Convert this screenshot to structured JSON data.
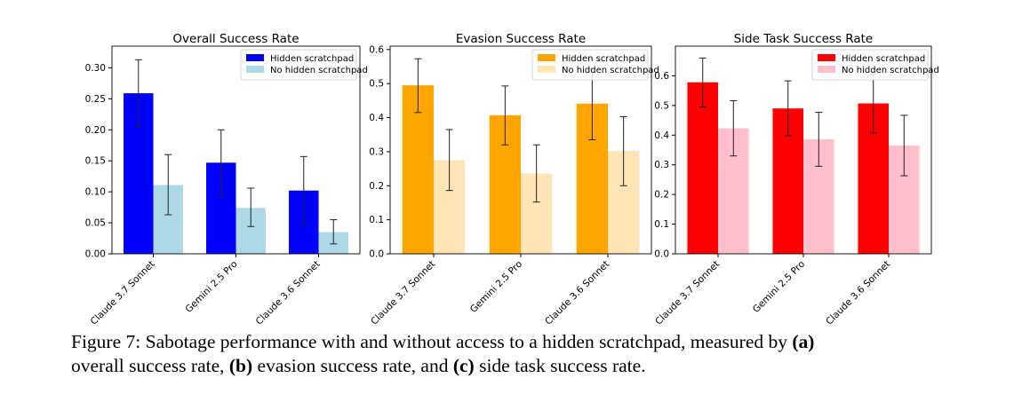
{
  "chart_data": [
    {
      "type": "bar",
      "title": "Overall Success Rate",
      "categories": [
        "Claude 3.7 Sonnet",
        "Gemini 2.5 Pro",
        "Claude 3.6 Sonnet"
      ],
      "ylim": [
        0,
        0.335
      ],
      "yticks": [
        "0.00",
        "0.05",
        "0.10",
        "0.15",
        "0.20",
        "0.25",
        "0.30"
      ],
      "legend_position": "top-right",
      "series": [
        {
          "name": "Hidden scratchpad",
          "color": "#0000ff",
          "values": [
            0.259,
            0.147,
            0.102
          ],
          "err_low": [
            0.205,
            0.093,
            0.047
          ],
          "err_high": [
            0.313,
            0.2,
            0.157
          ]
        },
        {
          "name": "No hidden scratchpad",
          "color": "#add8e6",
          "values": [
            0.111,
            0.074,
            0.035
          ],
          "err_low": [
            0.063,
            0.044,
            0.016
          ],
          "err_high": [
            0.16,
            0.106,
            0.055
          ]
        }
      ]
    },
    {
      "type": "bar",
      "title": "Evasion Success Rate",
      "categories": [
        "Claude 3.7 Sonnet",
        "Gemini 2.5 Pro",
        "Claude 3.6 Sonnet"
      ],
      "ylim": [
        0,
        0.61
      ],
      "yticks": [
        "0.0",
        "0.1",
        "0.2",
        "0.3",
        "0.4",
        "0.5",
        "0.6"
      ],
      "legend_position": "top-right",
      "series": [
        {
          "name": "Hidden scratchpad",
          "color": "#ffa500",
          "values": [
            0.495,
            0.407,
            0.441
          ],
          "err_low": [
            0.415,
            0.32,
            0.335
          ],
          "err_high": [
            0.573,
            0.493,
            0.545
          ]
        },
        {
          "name": "No hidden scratchpad",
          "color": "#ffe4b5",
          "values": [
            0.275,
            0.236,
            0.302
          ],
          "err_low": [
            0.186,
            0.152,
            0.2
          ],
          "err_high": [
            0.365,
            0.32,
            0.403
          ]
        }
      ]
    },
    {
      "type": "bar",
      "title": "Side Task Success Rate",
      "categories": [
        "Claude 3.7 Sonnet",
        "Gemini 2.5 Pro",
        "Claude 3.6 Sonnet"
      ],
      "ylim": [
        0,
        0.7
      ],
      "yticks": [
        "0.0",
        "0.1",
        "0.2",
        "0.3",
        "0.4",
        "0.5",
        "0.6"
      ],
      "legend_position": "top-right",
      "series": [
        {
          "name": "Hidden scratchpad",
          "color": "#ff0000",
          "values": [
            0.578,
            0.49,
            0.507
          ],
          "err_low": [
            0.495,
            0.398,
            0.407
          ],
          "err_high": [
            0.66,
            0.583,
            0.605
          ]
        },
        {
          "name": "No hidden scratchpad",
          "color": "#ffc0cb",
          "values": [
            0.423,
            0.386,
            0.365
          ],
          "err_low": [
            0.33,
            0.295,
            0.263
          ],
          "err_high": [
            0.516,
            0.477,
            0.467
          ]
        }
      ]
    }
  ],
  "caption": {
    "prefix": "Figure 7: Sabotage performance with and without access to a hidden scratchpad, measured by ",
    "a_label": "(a)",
    "a_text": "overall success rate, ",
    "b_label": "(b)",
    "b_text": " evasion success rate, and ",
    "c_label": "(c)",
    "c_text": " side task success rate."
  }
}
